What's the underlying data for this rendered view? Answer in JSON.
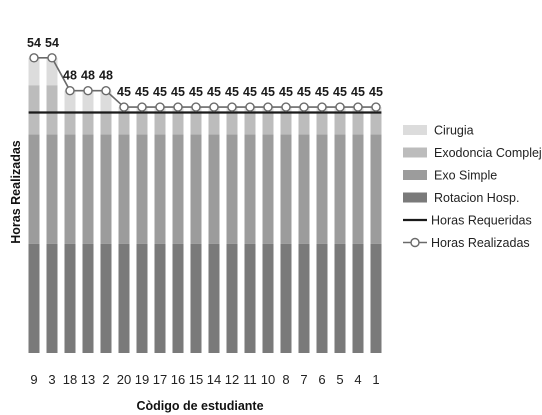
{
  "chart_data": {
    "type": "bar",
    "stacked": true,
    "xlabel": "Còdigo de estudiante",
    "ylabel": "Horas Realizadas",
    "ylim": [
      0,
      58
    ],
    "grid": false,
    "legend_position": "right",
    "categories": [
      "9",
      "3",
      "18",
      "13",
      "2",
      "20",
      "19",
      "17",
      "16",
      "15",
      "14",
      "12",
      "11",
      "10",
      "8",
      "7",
      "6",
      "5",
      "4",
      "1"
    ],
    "series": [
      {
        "name": "Rotacion Hosp.",
        "kind": "bar",
        "color": "#7a7a7a",
        "values": [
          20,
          20,
          20,
          20,
          20,
          20,
          20,
          20,
          20,
          20,
          20,
          20,
          20,
          20,
          20,
          20,
          20,
          20,
          20,
          20
        ]
      },
      {
        "name": "Exo Simple",
        "kind": "bar",
        "color": "#9c9c9c",
        "values": [
          20,
          20,
          20,
          20,
          20,
          20,
          20,
          20,
          20,
          20,
          20,
          20,
          20,
          20,
          20,
          20,
          20,
          20,
          20,
          20
        ]
      },
      {
        "name": "Exodoncia Compleja",
        "kind": "bar",
        "color": "#bcbcbc",
        "values": [
          9,
          9,
          4,
          4,
          4,
          4,
          4,
          4,
          4,
          4,
          4,
          4,
          4,
          4,
          4,
          4,
          4,
          4,
          4,
          4
        ]
      },
      {
        "name": "Cirugia",
        "kind": "bar",
        "color": "#dcdcdc",
        "values": [
          5,
          5,
          4,
          4,
          4,
          1,
          1,
          1,
          1,
          1,
          1,
          1,
          1,
          1,
          1,
          1,
          1,
          1,
          1,
          1
        ]
      },
      {
        "name": "Horas Requeridas",
        "kind": "line",
        "color": "#1a1a1a",
        "values": [
          44,
          44,
          44,
          44,
          44,
          44,
          44,
          44,
          44,
          44,
          44,
          44,
          44,
          44,
          44,
          44,
          44,
          44,
          44,
          44
        ]
      },
      {
        "name": "Horas Realizadas",
        "kind": "line-marker",
        "color": "#6a6a6a",
        "values": [
          54,
          54,
          48,
          48,
          48,
          45,
          45,
          45,
          45,
          45,
          45,
          45,
          45,
          45,
          45,
          45,
          45,
          45,
          45,
          45
        ],
        "data_labels": [
          "54",
          "54",
          "48",
          "48",
          "48",
          "45",
          "45",
          "45",
          "45",
          "45",
          "45",
          "45",
          "45",
          "45",
          "45",
          "45",
          "45",
          "45",
          "45",
          "45"
        ]
      }
    ],
    "legend_order": [
      "Cirugia",
      "Exodoncia Compleja",
      "Exo Simple",
      "Rotacion Hosp.",
      "Horas Requeridas",
      "Horas Realizadas"
    ]
  }
}
